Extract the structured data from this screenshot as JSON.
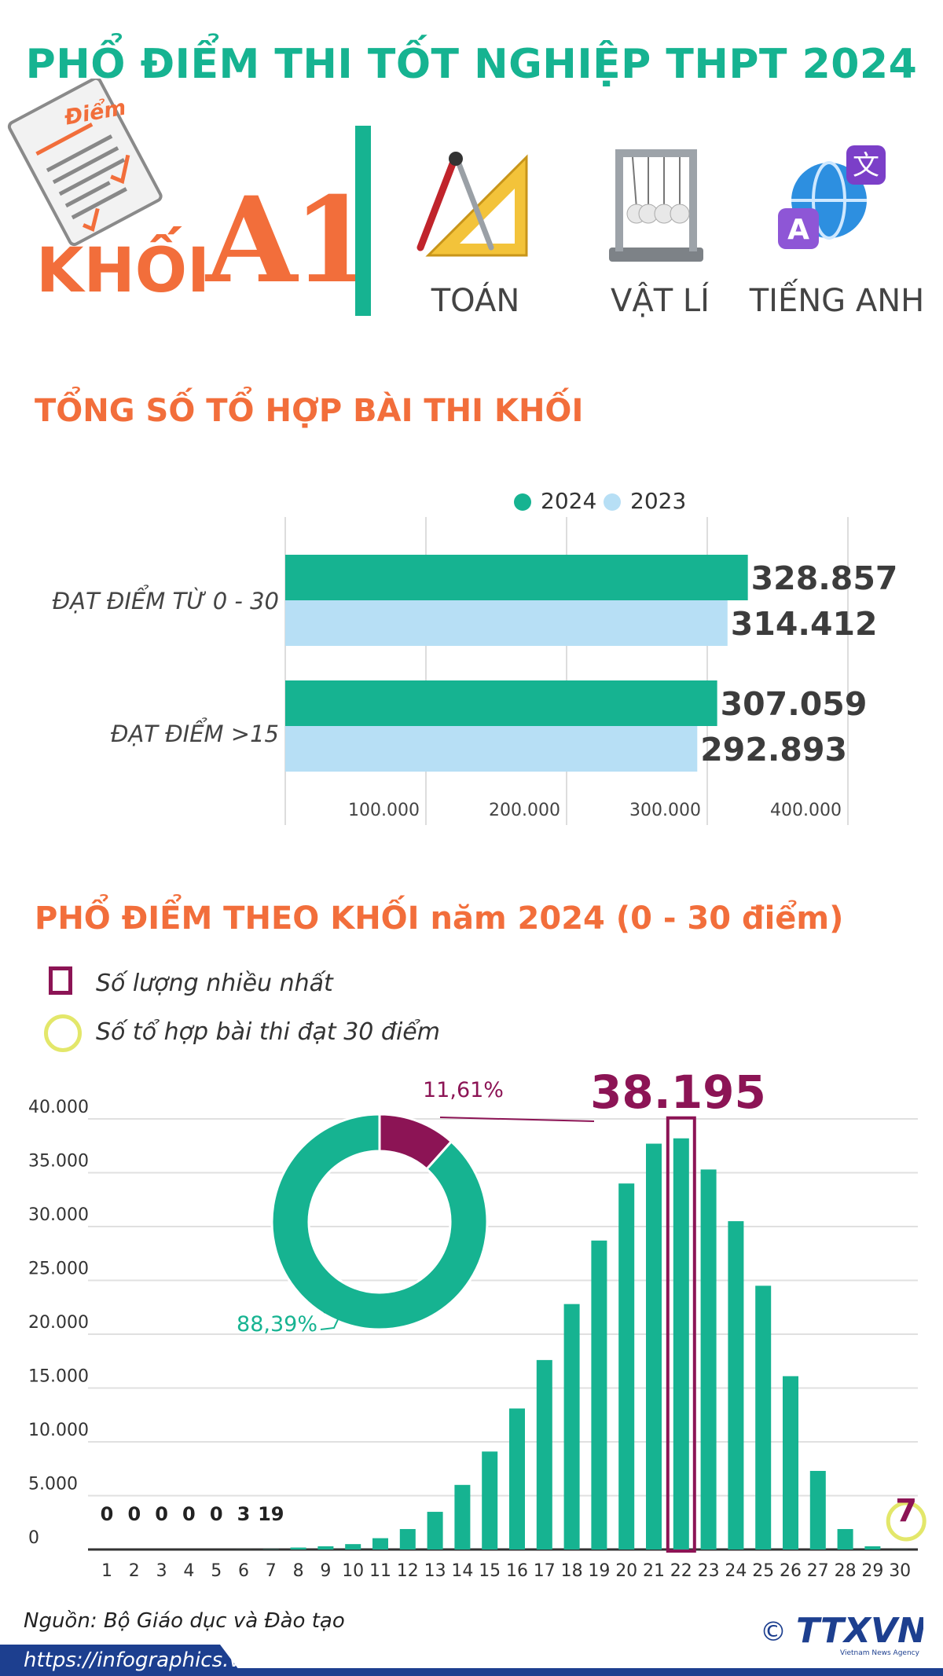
{
  "header": {
    "title": "PHỔ ĐIỂM THI TỐT NGHIỆP THPT 2024",
    "paper_icon_label": "Điểm",
    "khoi_label": "KHỐI",
    "khoi_code": "A1",
    "subjects": [
      {
        "label": "TOÁN",
        "icon": "ruler-compass-icon"
      },
      {
        "label": "VẬT LÍ",
        "icon": "newton-cradle-icon"
      },
      {
        "label": "TIẾNG ANH",
        "icon": "translate-globe-icon"
      }
    ]
  },
  "colors": {
    "green": "#16b391",
    "light_blue": "#b7dff5",
    "orange": "#f26e3b",
    "maroon": "#8c1455",
    "yellow": "#e3e76a",
    "navy": "#1d3f8f"
  },
  "section1": {
    "title": "TỔNG SỐ TỔ HỢP BÀI THI KHỐI"
  },
  "section2": {
    "title": "PHỔ ĐIỂM THEO KHỐI năm 2024 (0 - 30 điểm)",
    "legend_max": "Số lượng nhiều nhất",
    "legend_30": "Số tổ hợp bài thi đạt 30 điểm"
  },
  "chart_data": [
    {
      "type": "bar",
      "orientation": "horizontal",
      "categories": [
        "ĐẠT ĐIỂM TỪ 0 - 30",
        "ĐẠT ĐIỂM >15"
      ],
      "series": [
        {
          "name": "2024",
          "values": [
            328857,
            307059
          ],
          "labels": [
            "328.857",
            "307.059"
          ],
          "color": "#16b391"
        },
        {
          "name": "2023",
          "values": [
            314412,
            292893
          ],
          "labels": [
            "314.412",
            "292.893"
          ],
          "color": "#b7dff5"
        }
      ],
      "x_ticks": [
        "100.000",
        "200.000",
        "300.000",
        "400.000"
      ],
      "xlim": [
        0,
        400000
      ],
      "grid": true,
      "legend": "top-center"
    },
    {
      "type": "bar",
      "categories": [
        "1",
        "2",
        "3",
        "4",
        "5",
        "6",
        "7",
        "8",
        "9",
        "10",
        "11",
        "12",
        "13",
        "14",
        "15",
        "16",
        "17",
        "18",
        "19",
        "20",
        "21",
        "22",
        "23",
        "24",
        "25",
        "26",
        "27",
        "28",
        "29",
        "30"
      ],
      "values": [
        0,
        0,
        0,
        0,
        0,
        3,
        19,
        180,
        300,
        500,
        1050,
        1900,
        3500,
        6000,
        9100,
        13100,
        17600,
        22800,
        28700,
        34000,
        37700,
        38195,
        35300,
        30500,
        24500,
        16100,
        7300,
        1900,
        300,
        7
      ],
      "small_value_labels": [
        "0",
        "0",
        "0",
        "0",
        "0",
        "3",
        "19"
      ],
      "y_ticks": [
        "0",
        "5.000",
        "10.000",
        "15.000",
        "20.000",
        "25.000",
        "30.000",
        "35.000",
        "40.000"
      ],
      "ylim": [
        0,
        40000
      ],
      "max_label": "38.195",
      "max_category": "22",
      "top_label": "7",
      "top_category": "30",
      "grid": true
    },
    {
      "type": "pie",
      "style": "donut",
      "slices": [
        {
          "label": "11,61%",
          "value": 11.61,
          "color": "#8c1455"
        },
        {
          "label": "88,39%",
          "value": 88.39,
          "color": "#16b391"
        }
      ]
    }
  ],
  "footer": {
    "source": "Nguồn: Bộ Giáo dục và Đào tạo",
    "url": "https://infographics.vn",
    "logo_copyright": "©",
    "logo_text": "TTXVN",
    "logo_sub": "Vietnam News Agency"
  }
}
